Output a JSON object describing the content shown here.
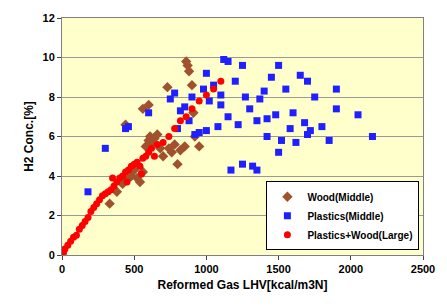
{
  "chart_data": {
    "type": "scatter",
    "x_label": "Reformed Gas LHV[kcal/m3N]",
    "y_label": "H2 Conc.[%]",
    "xlim": [
      0,
      2500
    ],
    "ylim": [
      0,
      12
    ],
    "xticks": [
      0,
      500,
      1000,
      1500,
      2000,
      2500
    ],
    "yticks": [
      0,
      2,
      4,
      6,
      8,
      10,
      12
    ],
    "grid": "y",
    "legend": "bottom right",
    "series": [
      {
        "name": "Wood(Middle)",
        "color": "#a0522d",
        "marker": "diamond",
        "x": [
          330,
          380,
          420,
          450,
          480,
          500,
          520,
          540,
          560,
          580,
          600,
          610,
          620,
          640,
          660,
          680,
          700,
          740,
          760,
          780,
          800,
          820,
          850,
          560,
          600,
          440,
          730,
          860,
          870,
          880,
          900,
          910,
          920,
          950
        ],
        "values": [
          2.6,
          3.2,
          3.6,
          3.8,
          4.0,
          4.3,
          3.9,
          3.7,
          4.2,
          5.5,
          5.8,
          6.0,
          5.7,
          5.9,
          6.1,
          5.4,
          5.0,
          5.4,
          5.2,
          5.6,
          4.6,
          5.3,
          5.5,
          7.4,
          7.6,
          6.6,
          8.5,
          9.8,
          9.6,
          9.3,
          8.6,
          7.2,
          6.0,
          5.5
        ]
      },
      {
        "name": "Plastics(Middle)",
        "color": "#1f1fff",
        "marker": "square",
        "x": [
          180,
          300,
          440,
          460,
          600,
          750,
          780,
          800,
          820,
          850,
          880,
          900,
          920,
          950,
          980,
          1000,
          1020,
          1050,
          1080,
          1100,
          1120,
          1150,
          1170,
          1200,
          1220,
          1250,
          1270,
          1300,
          1320,
          1350,
          1370,
          1400,
          1420,
          1450,
          1480,
          1500,
          1520,
          1550,
          1580,
          1600,
          1620,
          1650,
          1680,
          1700,
          1720,
          1750,
          1800,
          1850,
          1900,
          2050,
          2150,
          1150,
          1250,
          1350,
          1500,
          1000,
          1100,
          1420,
          1700,
          1900
        ],
        "values": [
          3.2,
          5.4,
          6.4,
          6.5,
          7.2,
          7.9,
          8.2,
          6.4,
          7.3,
          7.5,
          6.8,
          8.0,
          6.1,
          6.2,
          8.4,
          9.2,
          7.8,
          8.6,
          6.5,
          8.1,
          9.9,
          7.0,
          4.3,
          8.8,
          6.6,
          9.6,
          8.0,
          7.4,
          4.5,
          6.8,
          7.9,
          8.3,
          6.0,
          9.0,
          7.1,
          9.6,
          5.8,
          8.4,
          6.4,
          7.2,
          5.7,
          9.1,
          6.7,
          8.8,
          6.3,
          8.0,
          6.5,
          5.8,
          8.4,
          7.1,
          6.0,
          9.8,
          4.6,
          4.3,
          5.2,
          6.3,
          7.6,
          6.9,
          6.1,
          7.4
        ]
      },
      {
        "name": "Plastics+Wood(Large)",
        "color": "#ff0000",
        "marker": "circle",
        "x": [
          10,
          20,
          40,
          60,
          80,
          100,
          120,
          140,
          160,
          180,
          200,
          220,
          240,
          260,
          280,
          300,
          320,
          340,
          360,
          380,
          400,
          420,
          440,
          460,
          480,
          500,
          520,
          540,
          560,
          580,
          600,
          620,
          640,
          660,
          700,
          740,
          780,
          820,
          860,
          900,
          950,
          1000,
          1050,
          1100,
          350,
          450,
          550
        ],
        "values": [
          0.1,
          0.3,
          0.5,
          0.7,
          0.9,
          1.0,
          1.3,
          1.5,
          1.7,
          1.9,
          2.2,
          2.4,
          2.6,
          2.8,
          3.0,
          3.1,
          3.2,
          3.3,
          3.5,
          3.7,
          3.9,
          4.0,
          4.2,
          4.3,
          4.5,
          4.6,
          4.7,
          4.5,
          4.9,
          5.0,
          5.2,
          5.4,
          5.0,
          5.6,
          5.7,
          6.0,
          6.4,
          6.8,
          7.0,
          7.4,
          7.8,
          8.1,
          8.4,
          8.8,
          3.9,
          3.7,
          4.1
        ]
      }
    ]
  }
}
